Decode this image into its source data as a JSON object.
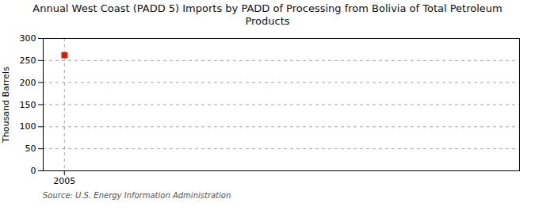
{
  "chart_data": {
    "type": "scatter",
    "title": "Annual West Coast (PADD 5) Imports by PADD of Processing from Bolivia of Total Petroleum\nProducts",
    "ylabel": "Thousand Barrels",
    "source": "Source: U.S. Energy Information Administration",
    "x": [
      2005
    ],
    "values": [
      262
    ],
    "color": "#cc2200",
    "marker": "square",
    "xlim": [
      2004.3,
      2020
    ],
    "xticks": [
      2005
    ],
    "ylim": [
      0,
      300
    ],
    "yticks": [
      0,
      50,
      100,
      150,
      200,
      250,
      300
    ],
    "grid": true
  }
}
